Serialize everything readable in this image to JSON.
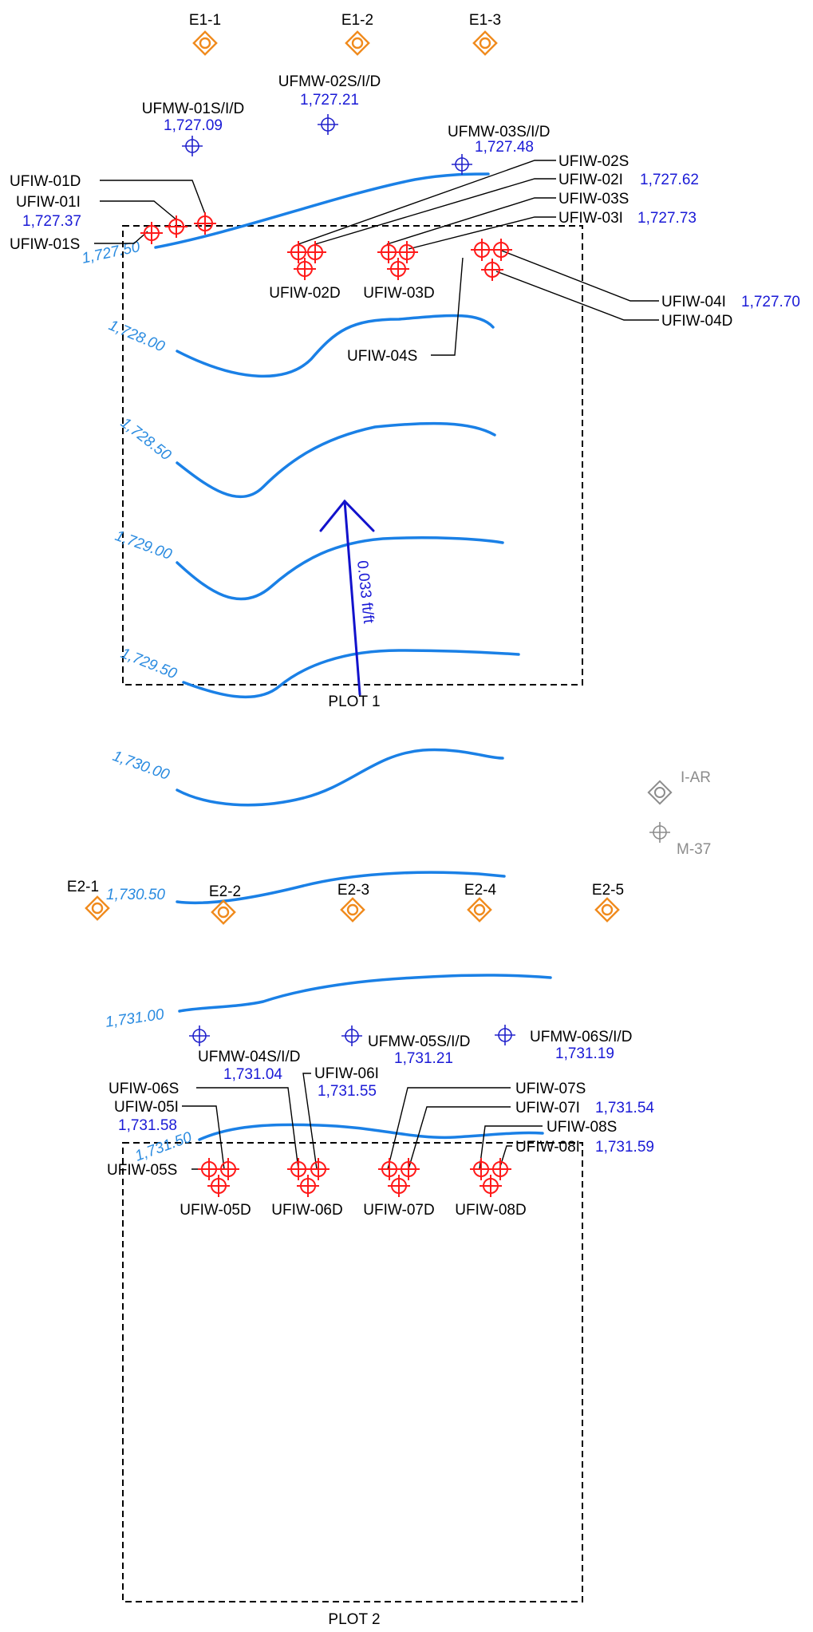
{
  "colors": {
    "contour": "#1a80e6",
    "contour_label": "#2a8be0",
    "injection_well": "#ff1a1a",
    "monitoring_well": "#2222cc",
    "extraction_well": "#f08a1c",
    "other_well": "#8c8c8c",
    "gradient_arrow": "#1212cc",
    "plot_boundary": "#000000"
  },
  "plots": {
    "p1": "PLOT 1",
    "p2": "PLOT 2"
  },
  "gradient": {
    "label": "0.033 ft/ft"
  },
  "contours": {
    "c1": "1,727.50",
    "c2": "1,728.00",
    "c3": "1,728.50",
    "c4": "1,729.00",
    "c5": "1,729.50",
    "c6": "1,730.00",
    "c7": "1,730.50",
    "c8": "1,731.00",
    "c9": "1,731.50"
  },
  "extraction_wells": {
    "e11": "E1-1",
    "e12": "E1-2",
    "e13": "E1-3",
    "e21": "E2-1",
    "e22": "E2-2",
    "e23": "E2-3",
    "e24": "E2-4",
    "e25": "E2-5"
  },
  "other_wells": {
    "iar": "I-AR",
    "m37": "M-37"
  },
  "monitoring_wells": {
    "ufmw01": {
      "name": "UFMW-01S/I/D",
      "value": "1,727.09"
    },
    "ufmw02": {
      "name": "UFMW-02S/I/D",
      "value": "1,727.21"
    },
    "ufmw03": {
      "name": "UFMW-03S/I/D",
      "value": "1,727.48"
    },
    "ufmw04": {
      "name": "UFMW-04S/I/D",
      "value": "1,731.04"
    },
    "ufmw05": {
      "name": "UFMW-05S/I/D",
      "value": "1,731.21"
    },
    "ufmw06": {
      "name": "UFMW-06S/I/D",
      "value": "1,731.19"
    }
  },
  "injection_wells": {
    "ufiw01d": "UFIW-01D",
    "ufiw01i": "UFIW-01I",
    "ufiw01i_value": "1,727.37",
    "ufiw01s": "UFIW-01S",
    "ufiw02s": "UFIW-02S",
    "ufiw02i": "UFIW-02I",
    "ufiw02i_value": "1,727.62",
    "ufiw02d": "UFIW-02D",
    "ufiw03s": "UFIW-03S",
    "ufiw03i": "UFIW-03I",
    "ufiw03i_value": "1,727.73",
    "ufiw03d": "UFIW-03D",
    "ufiw04i": "UFIW-04I",
    "ufiw04i_value": "1,727.70",
    "ufiw04d": "UFIW-04D",
    "ufiw04s": "UFIW-04S",
    "ufiw05s": "UFIW-05S",
    "ufiw05i": "UFIW-05I",
    "ufiw05i_value": "1,731.58",
    "ufiw05d": "UFIW-05D",
    "ufiw06s": "UFIW-06S",
    "ufiw06i": "UFIW-06I",
    "ufiw06i_value": "1,731.55",
    "ufiw06d": "UFIW-06D",
    "ufiw07s": "UFIW-07S",
    "ufiw07i": "UFIW-07I",
    "ufiw07i_value": "1,731.54",
    "ufiw07d": "UFIW-07D",
    "ufiw08s": "UFIW-08S",
    "ufiw08i": "UFIW-08I",
    "ufiw08i_value": "1,731.59",
    "ufiw08d": "UFIW-08D"
  }
}
